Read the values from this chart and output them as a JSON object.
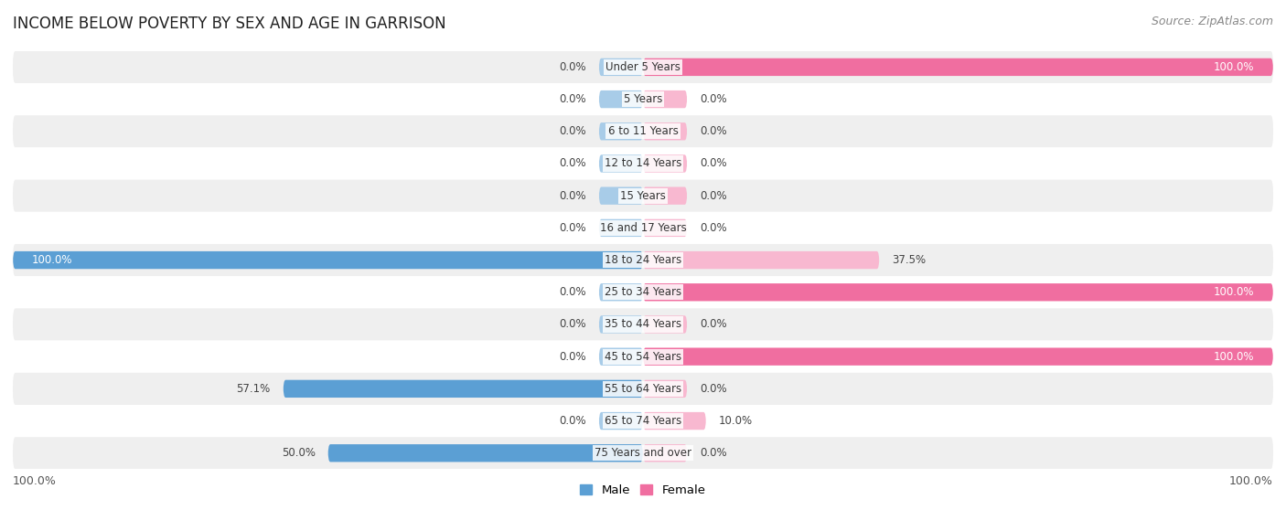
{
  "title": "INCOME BELOW POVERTY BY SEX AND AGE IN GARRISON",
  "source": "Source: ZipAtlas.com",
  "categories": [
    "Under 5 Years",
    "5 Years",
    "6 to 11 Years",
    "12 to 14 Years",
    "15 Years",
    "16 and 17 Years",
    "18 to 24 Years",
    "25 to 34 Years",
    "35 to 44 Years",
    "45 to 54 Years",
    "55 to 64 Years",
    "65 to 74 Years",
    "75 Years and over"
  ],
  "male": [
    0.0,
    0.0,
    0.0,
    0.0,
    0.0,
    0.0,
    100.0,
    0.0,
    0.0,
    0.0,
    57.1,
    0.0,
    50.0
  ],
  "female": [
    100.0,
    0.0,
    0.0,
    0.0,
    0.0,
    0.0,
    37.5,
    100.0,
    0.0,
    100.0,
    0.0,
    10.0,
    0.0
  ],
  "male_color_full": "#5b9fd4",
  "male_color_light": "#a8cce8",
  "female_color_full": "#f06ea0",
  "female_color_light": "#f8b8d0",
  "bg_row_odd": "#efefef",
  "bg_row_even": "#ffffff",
  "row_bg_color_list": [
    "#efefef",
    "#ffffff",
    "#efefef",
    "#ffffff",
    "#efefef",
    "#ffffff",
    "#efefef",
    "#ffffff",
    "#efefef",
    "#ffffff",
    "#efefef",
    "#ffffff",
    "#efefef"
  ],
  "bar_height": 0.55,
  "stub_size": 7.0,
  "xlim_left": -100,
  "xlim_right": 100,
  "x_axis_left_label": "100.0%",
  "x_axis_right_label": "100.0%",
  "legend_male": "Male",
  "legend_female": "Female",
  "title_fontsize": 12,
  "label_fontsize": 8.5,
  "value_fontsize": 8.5,
  "axis_fontsize": 9,
  "source_fontsize": 9
}
